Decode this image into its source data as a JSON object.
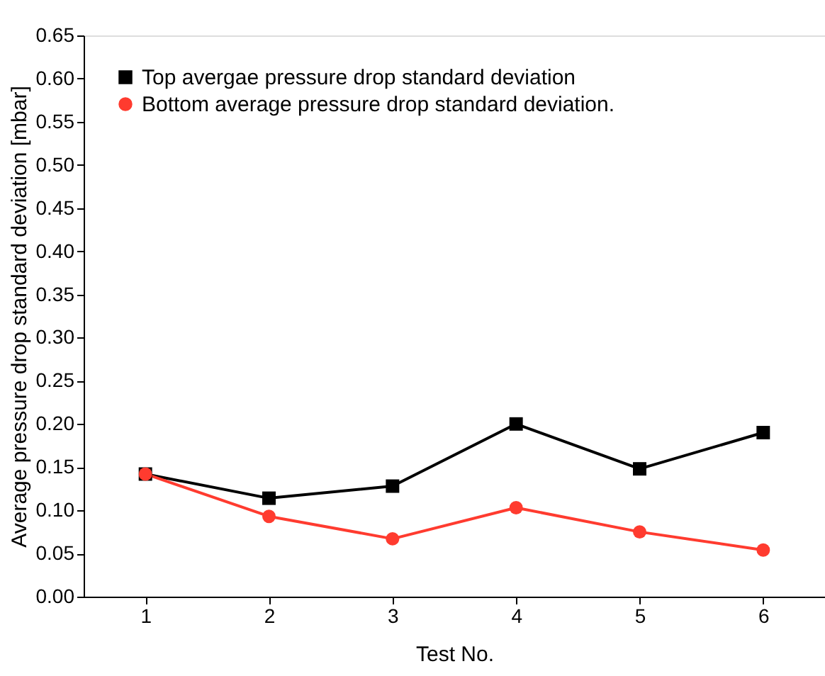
{
  "chart_data": {
    "type": "line",
    "xlabel": "Test No.",
    "ylabel": "Average pressure drop standard deviation [mbar]",
    "x": [
      1,
      2,
      3,
      4,
      5,
      6
    ],
    "series": [
      {
        "name": "Top avergae pressure drop standard deviation",
        "color": "#000000",
        "marker": "square",
        "values": [
          0.142,
          0.114,
          0.128,
          0.2,
          0.148,
          0.19
        ]
      },
      {
        "name": "Bottom average pressure drop standard deviation.",
        "color": "#ff3b2f",
        "marker": "circle",
        "values": [
          0.142,
          0.093,
          0.067,
          0.103,
          0.075,
          0.054
        ]
      }
    ],
    "xlim": [
      0.5,
      6.5
    ],
    "xticks": [
      1,
      2,
      3,
      4,
      5,
      6
    ],
    "ylim": [
      0,
      0.65
    ],
    "yticks": [
      {
        "value": 0,
        "label": "0.00"
      },
      {
        "value": 0.05,
        "label": "0.05"
      },
      {
        "value": 0.1,
        "label": "0.10"
      },
      {
        "value": 0.15,
        "label": "0.15"
      },
      {
        "value": 0.2,
        "label": "0.20"
      },
      {
        "value": 0.25,
        "label": "0.25"
      },
      {
        "value": 0.3,
        "label": "0.30"
      },
      {
        "value": 0.35,
        "label": "0.35"
      },
      {
        "value": 0.4,
        "label": "0.40"
      },
      {
        "value": 0.45,
        "label": "0.45"
      },
      {
        "value": 0.5,
        "label": "0.50"
      },
      {
        "value": 0.55,
        "label": "0.55"
      },
      {
        "value": 0.6,
        "label": "0.60"
      },
      {
        "value": 0.65,
        "label": "0.65"
      }
    ],
    "grid": false,
    "legend": "top left",
    "line_style": "solid"
  }
}
